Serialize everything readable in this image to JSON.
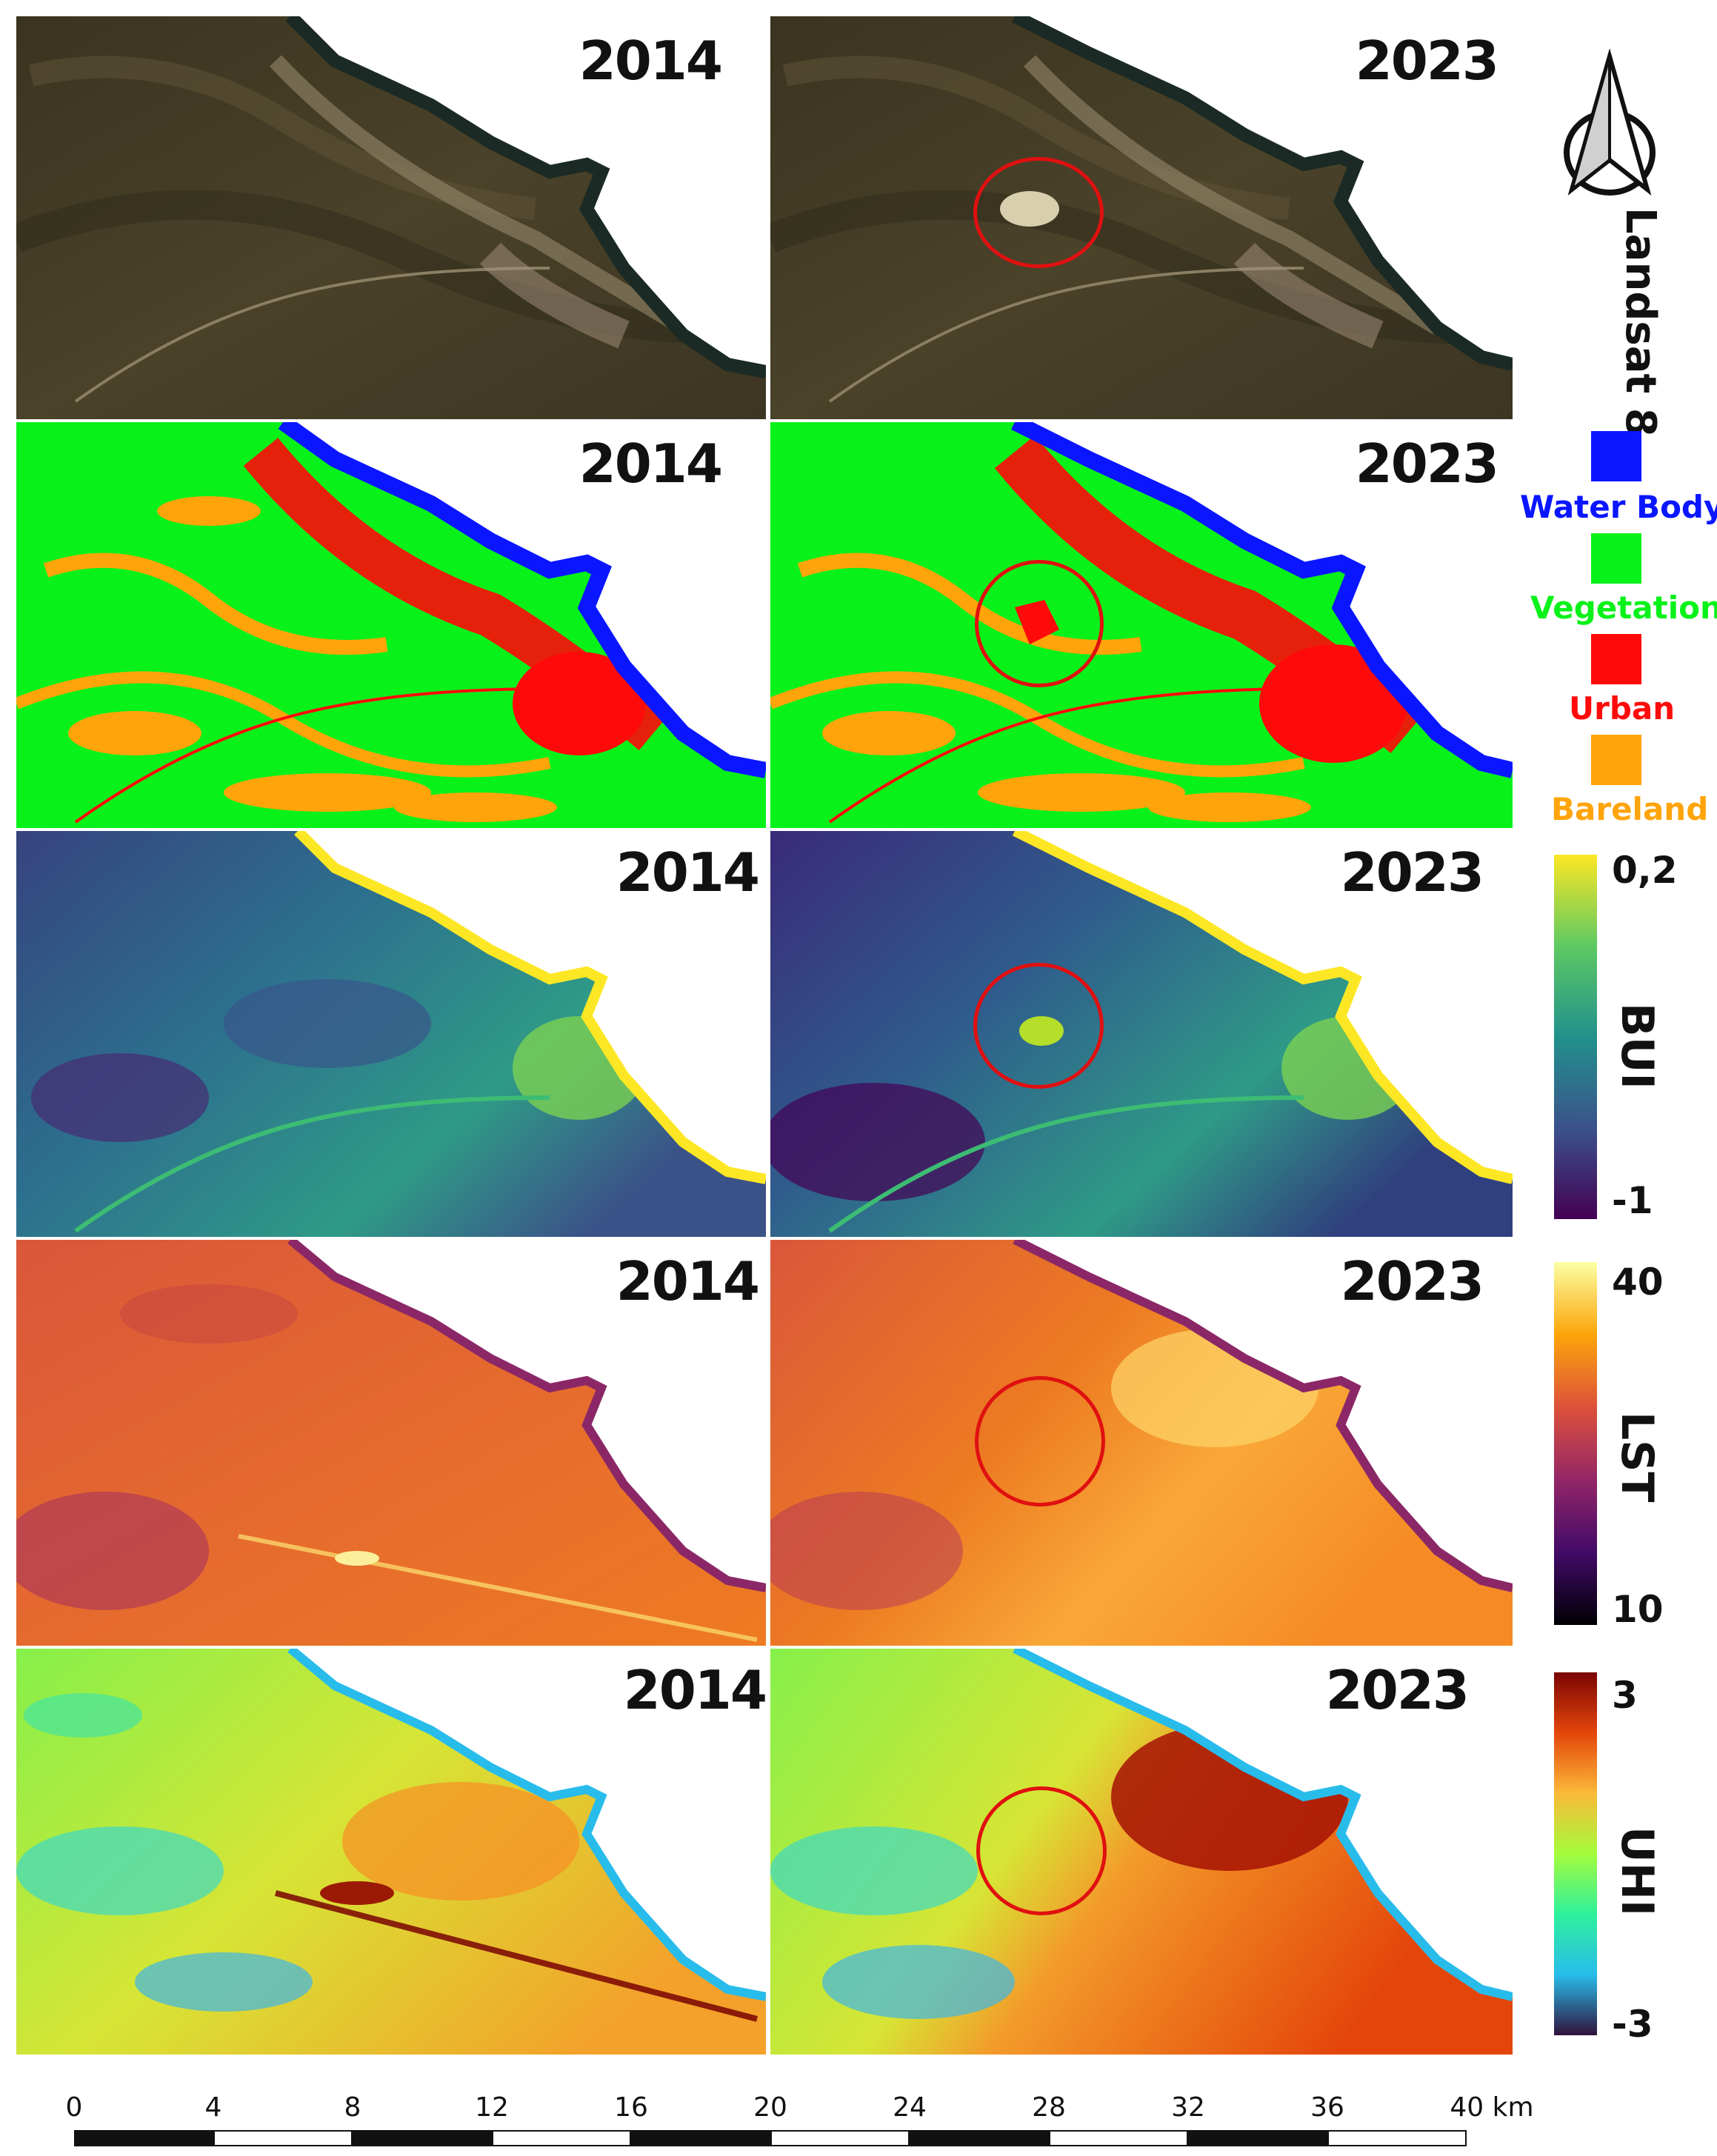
{
  "rows": [
    {
      "id": "landsat",
      "years": [
        "2014",
        "2023"
      ],
      "label": "Landsat 8"
    },
    {
      "id": "lulc",
      "years": [
        "2014",
        "2023"
      ],
      "label": ""
    },
    {
      "id": "bui",
      "years": [
        "2014",
        "2023"
      ],
      "label": "BUI"
    },
    {
      "id": "lst",
      "years": [
        "2014",
        "2023"
      ],
      "label": "LST"
    },
    {
      "id": "uhi",
      "years": [
        "2014",
        "2023"
      ],
      "label": "UHI"
    }
  ],
  "legend": {
    "classes": [
      {
        "name": "Water Body",
        "color": "#0a16ff"
      },
      {
        "name": "Vegetation",
        "color": "#08f21a"
      },
      {
        "name": "Urban",
        "color": "#ff0a0a"
      },
      {
        "name": "Bareland",
        "color": "#ffa40a"
      }
    ]
  },
  "colorbars": {
    "bui": {
      "max": "0,2",
      "min": "-1",
      "title": "BUI",
      "colors": [
        "#fde725",
        "#5ec962",
        "#21918c",
        "#3b528b",
        "#440154"
      ]
    },
    "lst": {
      "max": "40",
      "min": "10",
      "title": "LST",
      "colors": [
        "#fcffa4",
        "#fca50a",
        "#dd513a",
        "#932667",
        "#420a68",
        "#000004"
      ]
    },
    "uhi": {
      "max": "3",
      "min": "-3",
      "title": "UHI",
      "colors": [
        "#7a0403",
        "#e4460a",
        "#fbb938",
        "#a4fc3c",
        "#2ef19c",
        "#28bceb",
        "#30123b"
      ]
    }
  },
  "scalebar": {
    "ticks": [
      "0",
      "4",
      "8",
      "12",
      "16",
      "20",
      "24",
      "28",
      "32",
      "36",
      "40"
    ],
    "unit": "km"
  },
  "north_arrow": "north-arrow-icon",
  "highlight_color": "#e01010"
}
